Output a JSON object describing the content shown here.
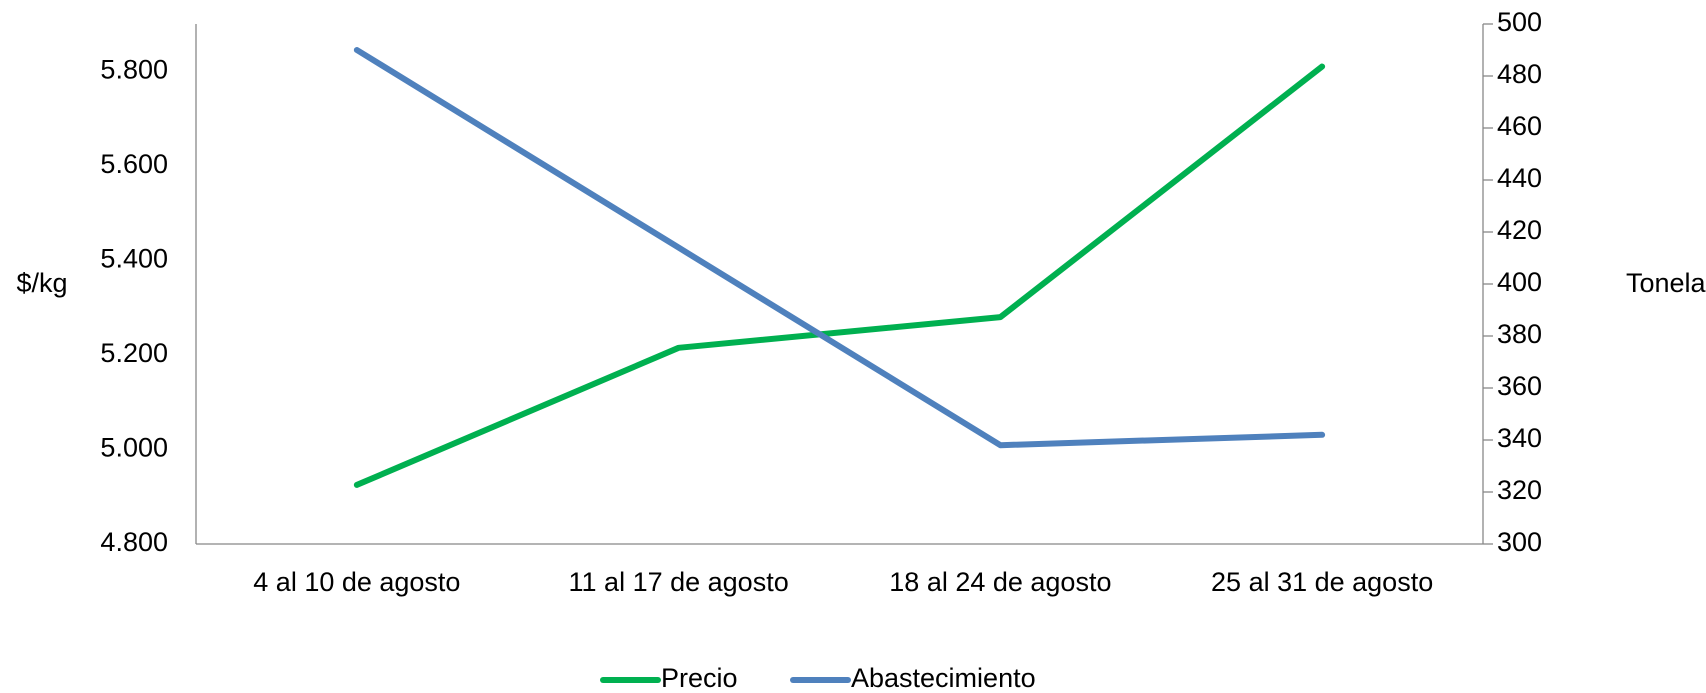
{
  "chart_data": {
    "type": "line",
    "categories": [
      "4 al 10 de agosto",
      "11 al 17 de agosto",
      "18 al 24 de agosto",
      "25 al 31 de agosto"
    ],
    "y_label": "$/kg",
    "y2_label": "Toneladas",
    "ylim": [
      4800,
      5900
    ],
    "yticks": [
      {
        "value": 4800,
        "label": "4.800"
      },
      {
        "value": 5000,
        "label": "5.000"
      },
      {
        "value": 5200,
        "label": "5.200"
      },
      {
        "value": 5400,
        "label": "5.400"
      },
      {
        "value": 5600,
        "label": "5.600"
      },
      {
        "value": 5800,
        "label": "5.800"
      }
    ],
    "y2lim": [
      300,
      500
    ],
    "y2ticks": [
      300,
      320,
      340,
      360,
      380,
      400,
      420,
      440,
      460,
      480,
      500
    ],
    "series": [
      {
        "name": "Precio",
        "color": "#00b050",
        "values": [
          4925,
          5215,
          5280,
          5810
        ]
      },
      {
        "name": "Abastecimiento",
        "color": "#4f81bd",
        "axis": "y2",
        "values": [
          490,
          414,
          338,
          342
        ]
      }
    ],
    "legend": "bottom"
  }
}
